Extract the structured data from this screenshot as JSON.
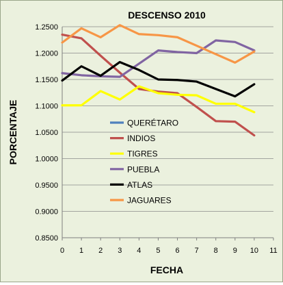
{
  "chart_data": {
    "type": "line",
    "title": "DESCENSO 2010",
    "xlabel": "FECHA",
    "ylabel": "PORCENTAJE",
    "xlim": [
      0,
      11
    ],
    "ylim": [
      0.85,
      1.25
    ],
    "x_ticks": [
      "0",
      "1",
      "2",
      "3",
      "4",
      "5",
      "6",
      "7",
      "8",
      "9",
      "10",
      "11"
    ],
    "y_ticks": [
      "0.8500",
      "0.9000",
      "0.9500",
      "1.0000",
      "1.0500",
      "1.1000",
      "1.1500",
      "1.2000",
      "1.2500"
    ],
    "grid": "horizontal",
    "legend_position": "inside-center",
    "series": [
      {
        "name": "QUERÉTARO",
        "color": "#4f81bd",
        "x": [],
        "values": []
      },
      {
        "name": "INDIOS",
        "color": "#c0504d",
        "x": [
          0,
          1,
          2,
          3,
          4,
          5,
          6,
          7,
          8,
          9,
          10
        ],
        "values": [
          1.235,
          1.228,
          1.195,
          1.163,
          1.132,
          1.127,
          1.124,
          1.098,
          1.071,
          1.07,
          1.044
        ]
      },
      {
        "name": "TIGRES",
        "color": "#ffff00",
        "x": [
          0,
          1,
          2,
          3,
          4,
          5,
          6,
          7,
          8,
          9,
          10
        ],
        "values": [
          1.101,
          1.101,
          1.128,
          1.112,
          1.137,
          1.124,
          1.121,
          1.12,
          1.104,
          1.104,
          1.088
        ]
      },
      {
        "name": "PUEBLA",
        "color": "#8064a2",
        "x": [
          0,
          1,
          2,
          3,
          4,
          5,
          6,
          7,
          8,
          9,
          10
        ],
        "values": [
          1.162,
          1.158,
          1.156,
          1.155,
          1.18,
          1.205,
          1.202,
          1.2,
          1.224,
          1.221,
          1.205
        ]
      },
      {
        "name": "ATLAS",
        "color": "#000000",
        "x": [
          0,
          1,
          2,
          3,
          4,
          5,
          6,
          7,
          8,
          9,
          10
        ],
        "values": [
          1.148,
          1.175,
          1.157,
          1.183,
          1.168,
          1.15,
          1.149,
          1.146,
          1.132,
          1.118,
          1.141
        ]
      },
      {
        "name": "JAGUARES",
        "color": "#f79646",
        "x": [
          0,
          1,
          2,
          3,
          4,
          5,
          6,
          7,
          8,
          9,
          10
        ],
        "values": [
          1.22,
          1.247,
          1.23,
          1.253,
          1.236,
          1.234,
          1.23,
          1.214,
          1.198,
          1.182,
          1.203
        ]
      }
    ]
  }
}
